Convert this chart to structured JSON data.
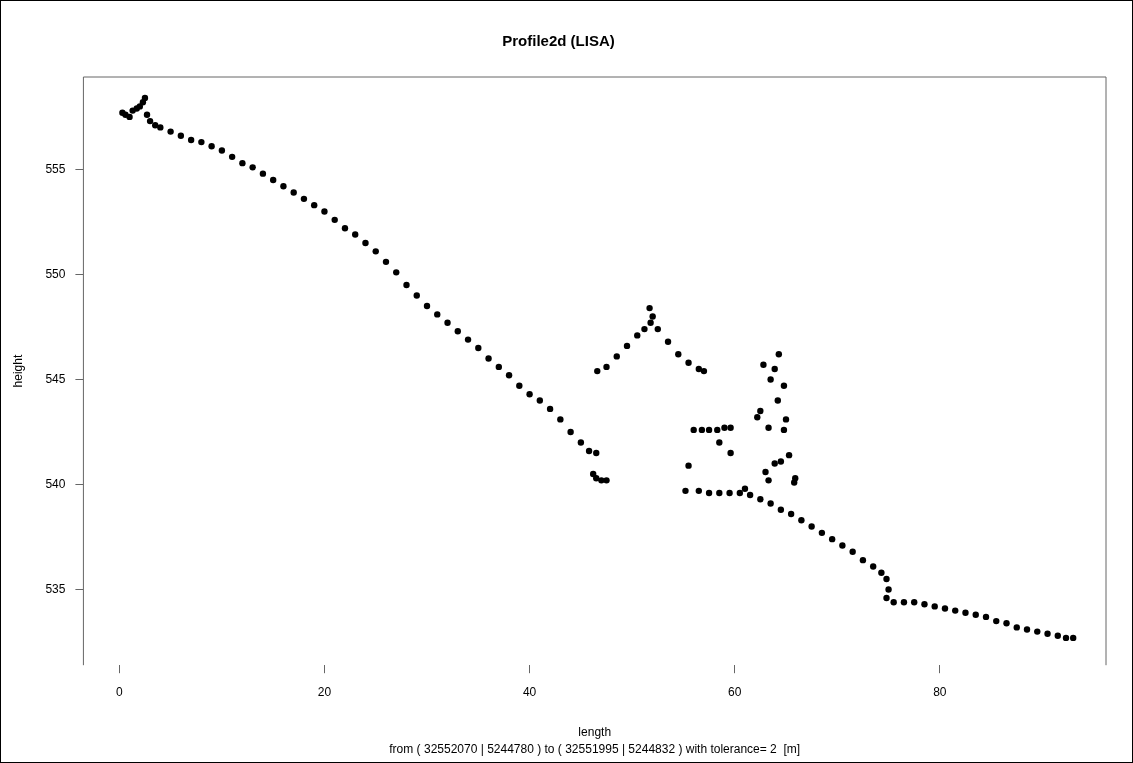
{
  "chart_data": {
    "type": "scatter",
    "title": "Profile2d (LISA)",
    "xlabel": "length",
    "ylabel": "height",
    "annotations": [
      "from ( 32552070 | 5244780 ) to ( 32551995 | 5244832 ) with tolerance= 2  [m]"
    ],
    "xlim": [
      -3.5,
      96.2
    ],
    "xticks": [
      0,
      20,
      40,
      60,
      80
    ],
    "ylim": [
      531.4,
      559.4
    ],
    "yticks": [
      535,
      540,
      545,
      550,
      555
    ],
    "grid": false,
    "legend": false,
    "marker": "circle",
    "series": [
      {
        "color": "#000000",
        "x": [
          0.3,
          0.6,
          1.0,
          1.3,
          1.7,
          2.0,
          2.3,
          2.5,
          2.7,
          3.0,
          3.5,
          4.0,
          5.0,
          6.0,
          7.0,
          8.0,
          9.0,
          10.0,
          11.0,
          12.0,
          13.0,
          14.0,
          15.0,
          16.0,
          17.0,
          18.0,
          19.0,
          20.0,
          21.0,
          22.0,
          23.0,
          24.0,
          25.0,
          26.0,
          27.0,
          28.0,
          29.0,
          30.0,
          31.0,
          32.0,
          33.0,
          34.0,
          35.0,
          36.0,
          37.0,
          38.0,
          39.0,
          40.0,
          41.0,
          42.0,
          43.0,
          44.0,
          45.0,
          45.8,
          46.5,
          46.2,
          46.5,
          47.0,
          47.5,
          46.6,
          47.5,
          48.5,
          49.5,
          50.5,
          51.2,
          51.8,
          51.7,
          52.0,
          52.5,
          53.5,
          54.5,
          55.5,
          56.5,
          57.0,
          56.0,
          56.8,
          57.5,
          58.3,
          59.0,
          59.6,
          59.6,
          58.5,
          55.5,
          55.2,
          56.5,
          57.5,
          58.5,
          59.5,
          60.5,
          61.0,
          61.5,
          62.5,
          63.5,
          64.5,
          65.5,
          66.5,
          67.5,
          68.5,
          69.5,
          70.5,
          71.5,
          72.5,
          73.5,
          74.3,
          74.8,
          75.0,
          74.8,
          75.5,
          76.5,
          77.5,
          78.5,
          79.5,
          80.5,
          81.5,
          82.5,
          83.5,
          84.5,
          85.5,
          86.5,
          87.5,
          88.5,
          89.5,
          90.5,
          91.5,
          92.3,
          93.0,
          62.2,
          62.5,
          62.8,
          63.0,
          63.3,
          63.3,
          63.5,
          63.9,
          63.9,
          64.2,
          64.3,
          64.5,
          64.8,
          64.8,
          65.0,
          65.3,
          65.8,
          65.9
        ],
        "values": [
          557.7,
          557.6,
          557.5,
          557.8,
          557.9,
          558.0,
          558.2,
          558.4,
          557.6,
          557.3,
          557.1,
          557.0,
          556.8,
          556.6,
          556.4,
          556.3,
          556.1,
          555.9,
          555.6,
          555.3,
          555.1,
          554.8,
          554.5,
          554.2,
          553.9,
          553.6,
          553.3,
          553.0,
          552.6,
          552.2,
          551.9,
          551.5,
          551.1,
          550.6,
          550.1,
          549.5,
          549.0,
          548.5,
          548.1,
          547.7,
          547.3,
          546.9,
          546.5,
          546.0,
          545.6,
          545.2,
          544.7,
          544.3,
          544.0,
          543.6,
          543.1,
          542.5,
          542.0,
          541.6,
          541.5,
          540.5,
          540.3,
          540.2,
          540.2,
          545.4,
          545.6,
          546.1,
          546.6,
          547.1,
          547.4,
          547.7,
          548.4,
          548.0,
          547.4,
          546.8,
          546.2,
          545.8,
          545.5,
          545.4,
          542.6,
          542.6,
          542.6,
          542.6,
          542.7,
          542.7,
          541.5,
          542.0,
          540.9,
          539.7,
          539.7,
          539.6,
          539.6,
          539.6,
          539.6,
          539.8,
          539.5,
          539.3,
          539.1,
          538.8,
          538.6,
          538.3,
          538.0,
          537.7,
          537.4,
          537.1,
          536.8,
          536.4,
          536.1,
          535.8,
          535.5,
          535.0,
          534.6,
          534.4,
          534.4,
          534.4,
          534.3,
          534.2,
          534.1,
          534.0,
          533.9,
          533.8,
          533.7,
          533.5,
          533.4,
          533.2,
          533.1,
          533.0,
          532.9,
          532.8,
          532.7,
          532.7,
          543.2,
          543.5,
          545.7,
          540.6,
          542.7,
          540.2,
          545.0,
          545.5,
          541.0,
          544.0,
          546.2,
          541.1,
          544.7,
          542.6,
          543.1,
          541.4,
          540.1,
          540.3
        ]
      }
    ]
  }
}
